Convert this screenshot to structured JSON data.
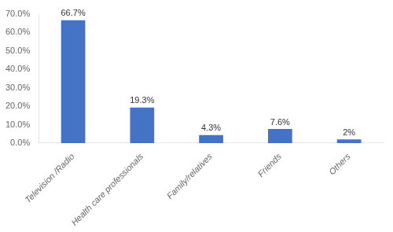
{
  "chart_data": {
    "type": "bar",
    "categories": [
      "Television /Radio",
      "Health care professionals",
      "Family/relatives",
      "Friends",
      "Others"
    ],
    "values": [
      66.7,
      19.3,
      4.3,
      7.6,
      2.0
    ],
    "value_labels": [
      "66.7%",
      "19.3%",
      "4.3%",
      "7.6%",
      "2%"
    ],
    "data_labels": true,
    "color": "#4472c4",
    "ylim": [
      0,
      70
    ],
    "yticks": [
      {
        "value": 0,
        "label": "0.0%"
      },
      {
        "value": 10,
        "label": "10.0%"
      },
      {
        "value": 20,
        "label": "20.0%"
      },
      {
        "value": 30,
        "label": "30.0%"
      },
      {
        "value": 40,
        "label": "40.0%"
      },
      {
        "value": 50,
        "label": "50.0%"
      },
      {
        "value": 60,
        "label": "60.0%"
      },
      {
        "value": 70,
        "label": "70.0%"
      }
    ],
    "grid": false
  }
}
